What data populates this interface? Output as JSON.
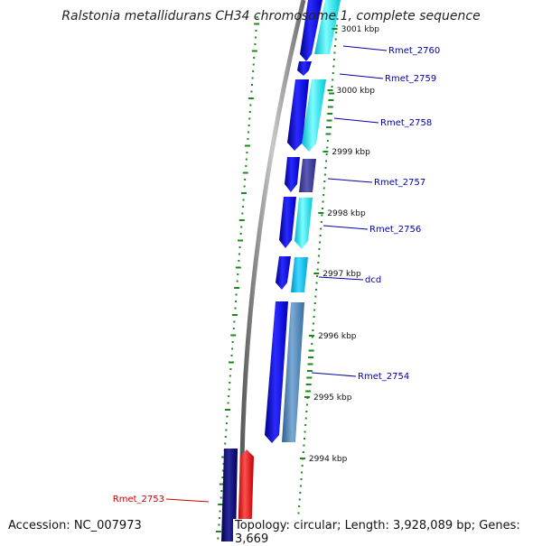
{
  "title": "Ralstonia metallidurans CH34 chromosome 1, complete sequence",
  "footer": {
    "accession": "Accession: NC_007973",
    "summary": "Topology: circular; Length: 3,928,089 bp; Genes: 3,669"
  },
  "ruler": [
    "3001 kbp",
    "3000 kbp",
    "2999 kbp",
    "2998 kbp",
    "2997 kbp",
    "2996 kbp",
    "2995 kbp",
    "2994 kbp"
  ],
  "gene_labels": [
    {
      "text": "Rmet_2760",
      "color": "#0000aa"
    },
    {
      "text": "Rmet_2759",
      "color": "#0000aa"
    },
    {
      "text": "Rmet_2758",
      "color": "#0000aa"
    },
    {
      "text": "Rmet_2757",
      "color": "#0000aa"
    },
    {
      "text": "Rmet_2756",
      "color": "#0000aa"
    },
    {
      "text": "dcd",
      "color": "#0000aa"
    },
    {
      "text": "Rmet_2754",
      "color": "#0000aa"
    },
    {
      "text": "Rmet_2753",
      "color": "#cc0000"
    }
  ],
  "colors": {
    "backbone": "#8a8a8a",
    "cds_forward_outer": "#0000ee",
    "cds_inner_cyan": "#00e8e8",
    "cds_inner_purple": "#3b3b9a",
    "cds_inner_teal": "#00bfe8",
    "cds_inner_steel": "#4a82b4",
    "cds_reverse_navy": "#0a0a78",
    "cds_reverse_red": "#ee0000",
    "gc_plot": "#1a8a1a"
  }
}
